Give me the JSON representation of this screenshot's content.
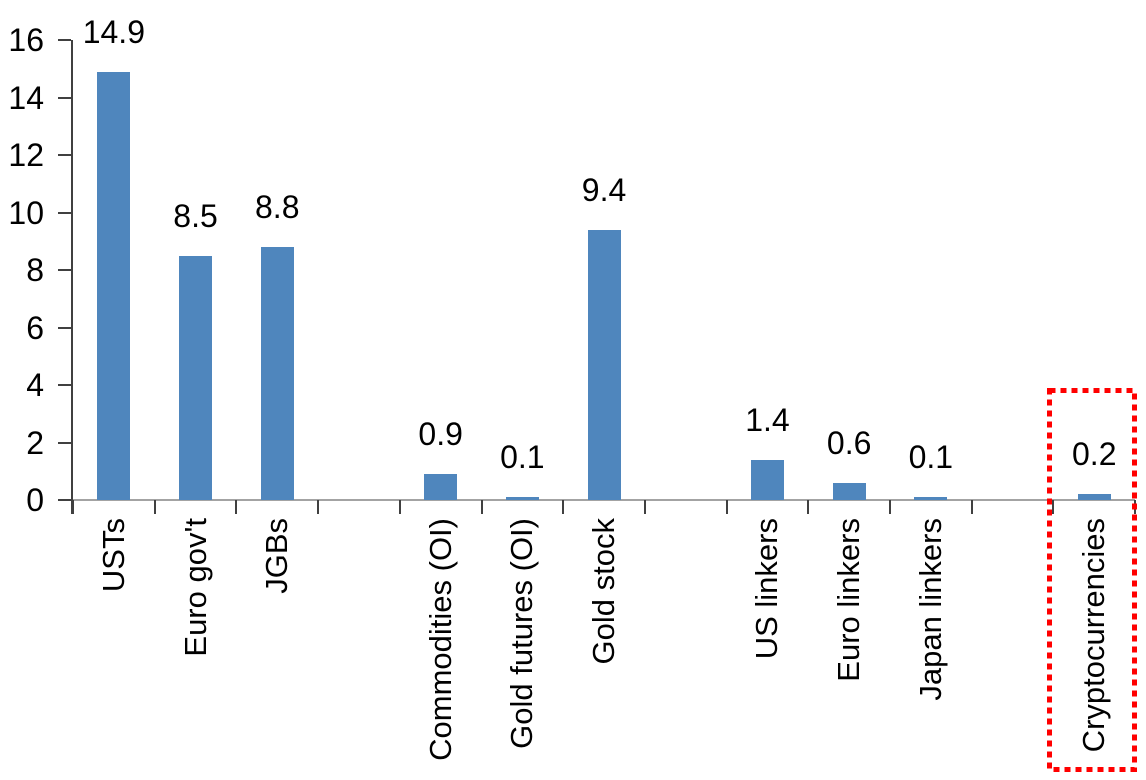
{
  "chart_data": {
    "type": "bar",
    "title": "",
    "xlabel": "",
    "ylabel": "",
    "categories": [
      "USTs",
      "Euro gov't",
      "JGBs",
      "Commodities (OI)",
      "Gold futures (OI)",
      "Gold stock",
      "US linkers",
      "Euro linkers",
      "Japan linkers",
      "Cryptocurrencies"
    ],
    "values": [
      14.9,
      8.5,
      8.8,
      0.9,
      0.1,
      9.4,
      1.4,
      0.6,
      0.1,
      0.2
    ],
    "value_labels": [
      "14.9",
      "8.5",
      "8.8",
      "0.9",
      "0.1",
      "9.4",
      "1.4",
      "0.6",
      "0.1",
      "0.2"
    ],
    "group_slots": [
      0,
      1,
      2,
      4,
      5,
      6,
      8,
      9,
      10,
      12
    ],
    "total_slots": 13,
    "ylim": [
      0,
      16
    ],
    "yticks": [
      0,
      2,
      4,
      6,
      8,
      10,
      12,
      14,
      16
    ],
    "grid": false,
    "legend": false,
    "colors": {
      "bar": "#4f86bd",
      "axis": "#404040",
      "baseline": "#a3a3a3",
      "text": "#000000",
      "highlight_box": "#ff0000"
    },
    "highlight": {
      "category": "Cryptocurrencies",
      "index": 9,
      "style": "dotted-box"
    }
  }
}
